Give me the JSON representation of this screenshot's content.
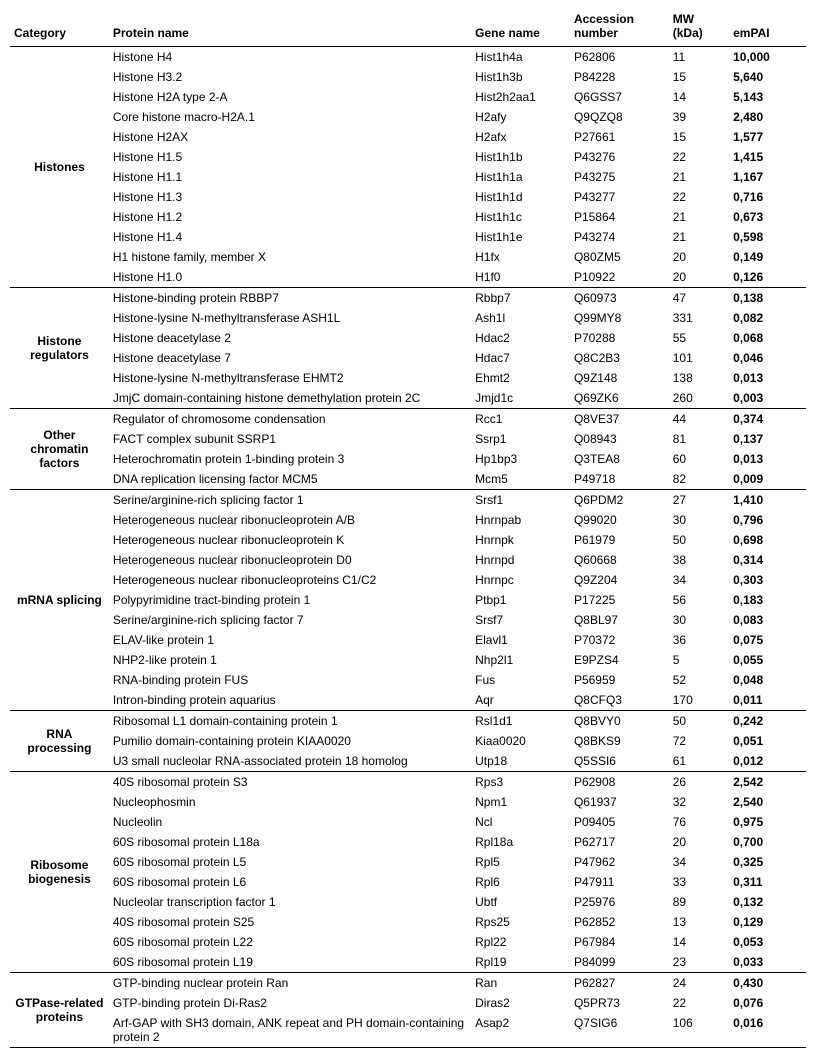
{
  "headers": {
    "category": "Category",
    "protein": "Protein name",
    "gene": "Gene name",
    "accession": "Accession number",
    "mw": "MW (kDa)",
    "empai": "emPAI"
  },
  "groups": [
    {
      "category": "Histones",
      "rows": [
        {
          "protein": "Histone H4",
          "gene": "Hist1h4a",
          "acc": "P62806",
          "mw": "11",
          "empai": "10,000"
        },
        {
          "protein": "Histone H3.2",
          "gene": "Hist1h3b",
          "acc": "P84228",
          "mw": "15",
          "empai": "5,640"
        },
        {
          "protein": "Histone H2A type 2-A",
          "gene": "Hist2h2aa1",
          "acc": "Q6GSS7",
          "mw": "14",
          "empai": "5,143"
        },
        {
          "protein": "Core histone macro-H2A.1",
          "gene": "H2afy",
          "acc": "Q9QZQ8",
          "mw": "39",
          "empai": "2,480"
        },
        {
          "protein": "Histone H2AX",
          "gene": "H2afx",
          "acc": "P27661",
          "mw": "15",
          "empai": "1,577"
        },
        {
          "protein": "Histone H1.5",
          "gene": "Hist1h1b",
          "acc": "P43276",
          "mw": "22",
          "empai": "1,415"
        },
        {
          "protein": "Histone H1.1",
          "gene": "Hist1h1a",
          "acc": "P43275",
          "mw": "21",
          "empai": "1,167"
        },
        {
          "protein": "Histone H1.3",
          "gene": "Hist1h1d",
          "acc": "P43277",
          "mw": "22",
          "empai": "0,716"
        },
        {
          "protein": "Histone H1.2",
          "gene": "Hist1h1c",
          "acc": "P15864",
          "mw": "21",
          "empai": "0,673"
        },
        {
          "protein": "Histone H1.4",
          "gene": "Hist1h1e",
          "acc": "P43274",
          "mw": "21",
          "empai": "0,598"
        },
        {
          "protein": "H1 histone family, member X",
          "gene": "H1fx",
          "acc": "Q80ZM5",
          "mw": "20",
          "empai": "0,149"
        },
        {
          "protein": "Histone H1.0",
          "gene": "H1f0",
          "acc": "P10922",
          "mw": "20",
          "empai": "0,126"
        }
      ]
    },
    {
      "category": "Histone regulators",
      "rows": [
        {
          "protein": "Histone-binding protein RBBP7",
          "gene": "Rbbp7",
          "acc": "Q60973",
          "mw": "47",
          "empai": "0,138"
        },
        {
          "protein": "Histone-lysine N-methyltransferase ASH1L",
          "gene": "Ash1l",
          "acc": "Q99MY8",
          "mw": "331",
          "empai": "0,082"
        },
        {
          "protein": "Histone deacetylase 2",
          "gene": "Hdac2",
          "acc": "P70288",
          "mw": "55",
          "empai": "0,068"
        },
        {
          "protein": "Histone deacetylase 7",
          "gene": "Hdac7",
          "acc": "Q8C2B3",
          "mw": "101",
          "empai": "0,046"
        },
        {
          "protein": "Histone-lysine N-methyltransferase EHMT2",
          "gene": "Ehmt2",
          "acc": "Q9Z148",
          "mw": "138",
          "empai": "0,013"
        },
        {
          "protein": "JmjC domain-containing histone demethylation protein 2C",
          "gene": "Jmjd1c",
          "acc": "Q69ZK6",
          "mw": "260",
          "empai": "0,003"
        }
      ]
    },
    {
      "category": "Other chromatin factors",
      "rows": [
        {
          "protein": "Regulator of chromosome condensation",
          "gene": "Rcc1",
          "acc": "Q8VE37",
          "mw": "44",
          "empai": "0,374"
        },
        {
          "protein": "FACT complex subunit SSRP1",
          "gene": "Ssrp1",
          "acc": "Q08943",
          "mw": "81",
          "empai": "0,137"
        },
        {
          "protein": "Heterochromatin protein 1-binding protein 3",
          "gene": "Hp1bp3",
          "acc": "Q3TEA8",
          "mw": "60",
          "empai": "0,013"
        },
        {
          "protein": "DNA replication licensing factor MCM5",
          "gene": "Mcm5",
          "acc": "P49718",
          "mw": "82",
          "empai": "0,009"
        }
      ]
    },
    {
      "category": "mRNA splicing",
      "rows": [
        {
          "protein": "Serine/arginine-rich splicing factor 1",
          "gene": "Srsf1",
          "acc": "Q6PDM2",
          "mw": "27",
          "empai": "1,410"
        },
        {
          "protein": "Heterogeneous nuclear ribonucleoprotein A/B",
          "gene": "Hnrnpab",
          "acc": "Q99020",
          "mw": "30",
          "empai": "0,796"
        },
        {
          "protein": "Heterogeneous nuclear ribonucleoprotein K",
          "gene": "Hnrnpk",
          "acc": "P61979",
          "mw": "50",
          "empai": "0,698"
        },
        {
          "protein": "Heterogeneous nuclear ribonucleoprotein D0",
          "gene": "Hnrnpd",
          "acc": "Q60668",
          "mw": "38",
          "empai": "0,314"
        },
        {
          "protein": "Heterogeneous nuclear ribonucleoproteins C1/C2",
          "gene": "Hnrnpc",
          "acc": "Q9Z204",
          "mw": "34",
          "empai": "0,303"
        },
        {
          "protein": "Polypyrimidine tract-binding protein 1",
          "gene": "Ptbp1",
          "acc": "P17225",
          "mw": "56",
          "empai": "0,183"
        },
        {
          "protein": "Serine/arginine-rich splicing factor 7",
          "gene": "Srsf7",
          "acc": "Q8BL97",
          "mw": "30",
          "empai": "0,083"
        },
        {
          "protein": "ELAV-like protein 1",
          "gene": "Elavl1",
          "acc": "P70372",
          "mw": "36",
          "empai": "0,075"
        },
        {
          "protein": "NHP2-like protein 1",
          "gene": "Nhp2l1",
          "acc": "E9PZS4",
          "mw": "5",
          "empai": "0,055"
        },
        {
          "protein": "RNA-binding protein FUS",
          "gene": "Fus",
          "acc": "P56959",
          "mw": "52",
          "empai": "0,048"
        },
        {
          "protein": "Intron-binding protein aquarius",
          "gene": "Aqr",
          "acc": "Q8CFQ3",
          "mw": "170",
          "empai": "0,011"
        }
      ]
    },
    {
      "category": "RNA processing",
      "rows": [
        {
          "protein": "Ribosomal L1 domain-containing protein 1",
          "gene": "Rsl1d1",
          "acc": "Q8BVY0",
          "mw": "50",
          "empai": "0,242"
        },
        {
          "protein": "Pumilio domain-containing protein KIAA0020",
          "gene": "Kiaa0020",
          "acc": "Q8BKS9",
          "mw": "72",
          "empai": "0,051"
        },
        {
          "protein": "U3 small nucleolar RNA-associated protein 18 homolog",
          "gene": "Utp18",
          "acc": "Q5SSI6",
          "mw": "61",
          "empai": "0,012"
        }
      ]
    },
    {
      "category": "Ribosome biogenesis",
      "rows": [
        {
          "protein": "40S ribosomal protein S3",
          "gene": "Rps3",
          "acc": "P62908",
          "mw": "26",
          "empai": "2,542"
        },
        {
          "protein": "Nucleophosmin",
          "gene": "Npm1",
          "acc": "Q61937",
          "mw": "32",
          "empai": "2,540"
        },
        {
          "protein": "Nucleolin",
          "gene": "Ncl",
          "acc": "P09405",
          "mw": "76",
          "empai": "0,975"
        },
        {
          "protein": "60S ribosomal protein L18a",
          "gene": "Rpl18a",
          "acc": "P62717",
          "mw": "20",
          "empai": "0,700"
        },
        {
          "protein": "60S ribosomal protein L5",
          "gene": "Rpl5",
          "acc": "P47962",
          "mw": "34",
          "empai": "0,325"
        },
        {
          "protein": "60S ribosomal protein L6",
          "gene": "Rpl6",
          "acc": "P47911",
          "mw": "33",
          "empai": "0,311"
        },
        {
          "protein": "Nucleolar transcription factor 1",
          "gene": "Ubtf",
          "acc": "P25976",
          "mw": "89",
          "empai": "0,132"
        },
        {
          "protein": "40S ribosomal protein S25",
          "gene": "Rps25",
          "acc": "P62852",
          "mw": "13",
          "empai": "0,129"
        },
        {
          "protein": "60S ribosomal protein L22",
          "gene": "Rpl22",
          "acc": "P67984",
          "mw": "14",
          "empai": "0,053"
        },
        {
          "protein": "60S ribosomal protein L19",
          "gene": "Rpl19",
          "acc": "P84099",
          "mw": "23",
          "empai": "0,033"
        }
      ]
    },
    {
      "category": "GTPase-related proteins",
      "rows": [
        {
          "protein": "GTP-binding nuclear protein Ran",
          "gene": "Ran",
          "acc": "P62827",
          "mw": "24",
          "empai": "0,430"
        },
        {
          "protein": "GTP-binding protein Di-Ras2",
          "gene": "Diras2",
          "acc": "Q5PR73",
          "mw": "22",
          "empai": "0,076"
        },
        {
          "protein": "Arf-GAP with SH3 domain, ANK repeat and PH domain-containing protein 2",
          "gene": "Asap2",
          "acc": "Q7SIG6",
          "mw": "106",
          "empai": "0,016"
        }
      ]
    }
  ]
}
